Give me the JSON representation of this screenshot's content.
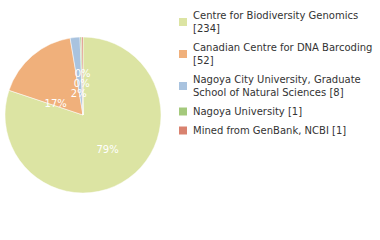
{
  "chart_data": {
    "type": "pie",
    "categories": [
      "Centre for Biodiversity Genomics [234]",
      "Canadian Centre for DNA Barcoding [52]",
      "Nagoya City University, Graduate School of Natural Sciences [8]",
      "Nagoya University [1]",
      "Mined from GenBank, NCBI [1]"
    ],
    "values": [
      79,
      17,
      2,
      0.3,
      0.3
    ],
    "value_labels": [
      "79%",
      "17%",
      "2%",
      "0%",
      "0%"
    ],
    "colors": [
      "#dce4a3",
      "#f0b07b",
      "#a9c3df",
      "#a4c97c",
      "#d9826f"
    ],
    "data_labels": true,
    "legend": "right"
  }
}
